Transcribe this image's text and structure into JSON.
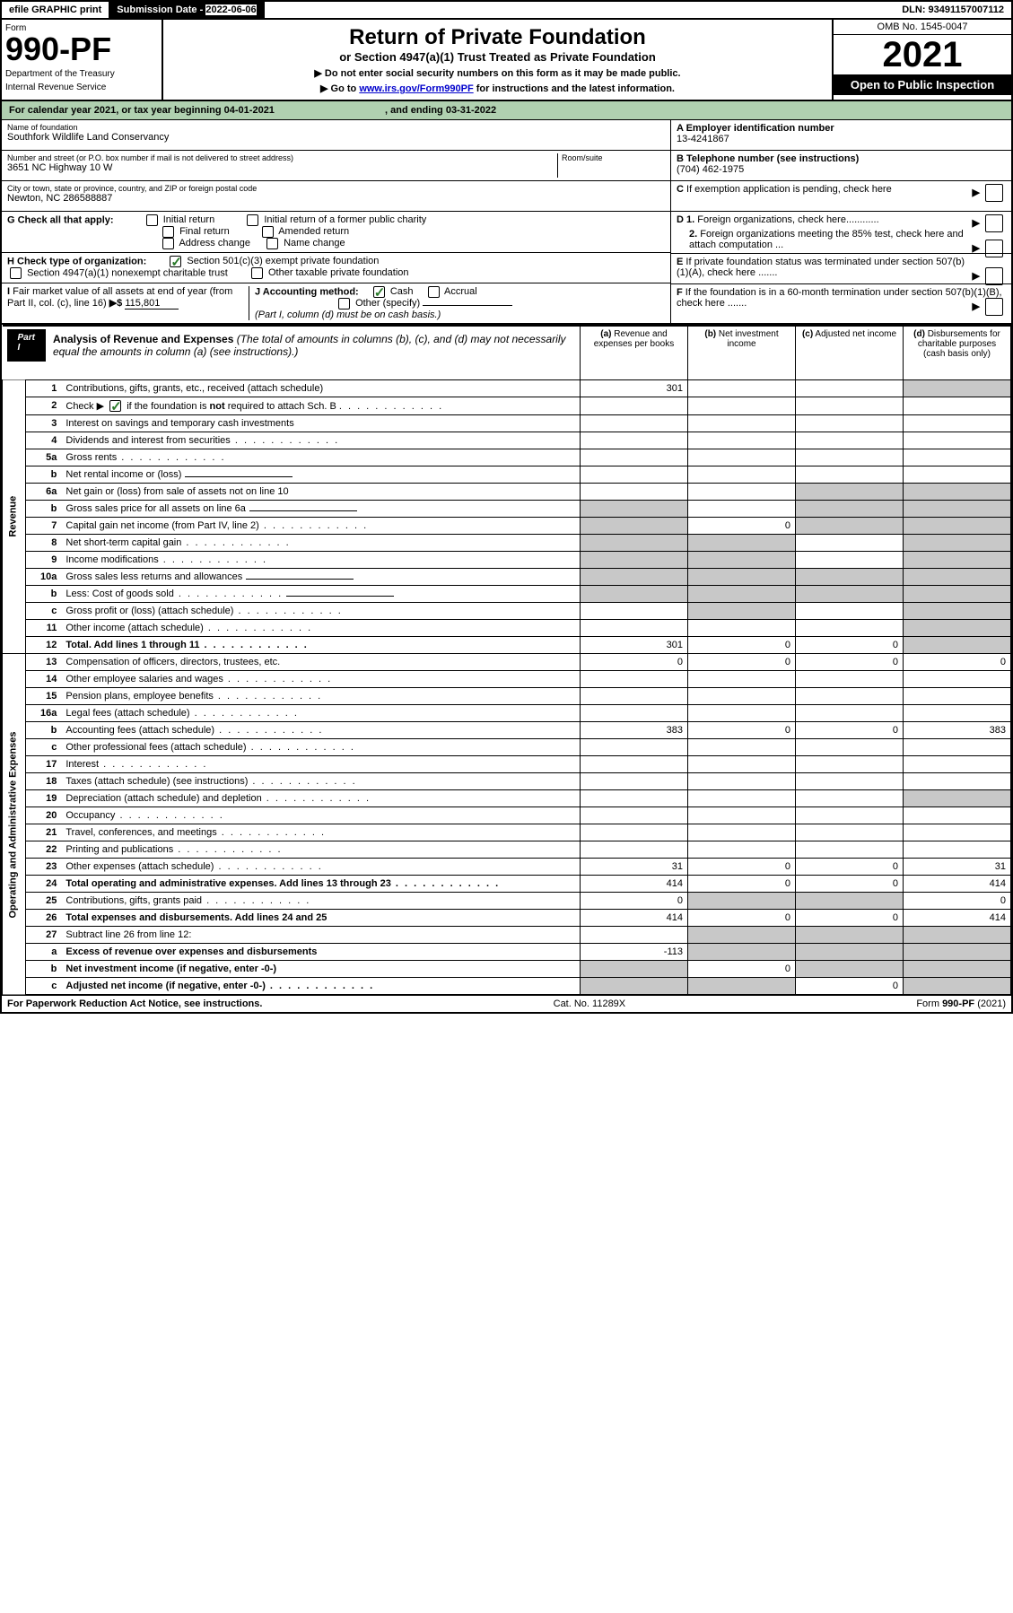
{
  "topbar": {
    "efile": "efile GRAPHIC print",
    "sub_label": "Submission Date - ",
    "sub_date": "2022-06-06",
    "dln": "DLN: 93491157007112"
  },
  "header": {
    "form_label": "Form",
    "form_num": "990-PF",
    "dept1": "Department of the Treasury",
    "dept2": "Internal Revenue Service",
    "title": "Return of Private Foundation",
    "subtitle": "or Section 4947(a)(1) Trust Treated as Private Foundation",
    "instr1": "▶ Do not enter social security numbers on this form as it may be made public.",
    "instr2_pre": "▶ Go to ",
    "instr2_link": "www.irs.gov/Form990PF",
    "instr2_post": " for instructions and the latest information.",
    "omb": "OMB No. 1545-0047",
    "year": "2021",
    "open": "Open to Public Inspection"
  },
  "cal_year": {
    "prefix": "For calendar year 2021, or tax year beginning ",
    "begin": "04-01-2021",
    "mid": " , and ending ",
    "end": "03-31-2022"
  },
  "id": {
    "name_lbl": "Name of foundation",
    "name": "Southfork Wildlife Land Conservancy",
    "addr_lbl": "Number and street (or P.O. box number if mail is not delivered to street address)",
    "addr": "3651 NC Highway 10 W",
    "room_lbl": "Room/suite",
    "city_lbl": "City or town, state or province, country, and ZIP or foreign postal code",
    "city": "Newton, NC 286588887",
    "a_lbl": "A Employer identification number",
    "a_val": "13-4241867",
    "b_lbl": "B Telephone number (see instructions)",
    "b_val": "(704) 462-1975",
    "c_lbl": "C If exemption application is pending, check here",
    "d1": "D 1. Foreign organizations, check here............",
    "d2": "2. Foreign organizations meeting the 85% test, check here and attach computation ...",
    "e": "E If private foundation status was terminated under section 507(b)(1)(A), check here .......",
    "f": "F If the foundation is in a 60-month termination under section 507(b)(1)(B), check here ......."
  },
  "g": {
    "label": "G Check all that apply:",
    "initial": "Initial return",
    "initial_former": "Initial return of a former public charity",
    "final": "Final return",
    "amended": "Amended return",
    "addr_change": "Address change",
    "name_change": "Name change"
  },
  "h": {
    "label": "H Check type of organization:",
    "opt1": "Section 501(c)(3) exempt private foundation",
    "opt2": "Section 4947(a)(1) nonexempt charitable trust",
    "opt3": "Other taxable private foundation"
  },
  "i": {
    "label": "I Fair market value of all assets at end of year (from Part II, col. (c), line 16) ▶$ ",
    "val": "115,801"
  },
  "j": {
    "label": "J Accounting method:",
    "cash": "Cash",
    "accrual": "Accrual",
    "other": "Other (specify)",
    "note": "(Part I, column (d) must be on cash basis.)"
  },
  "part1": {
    "badge": "Part I",
    "title": "Analysis of Revenue and Expenses",
    "title_note": " (The total of amounts in columns (b), (c), and (d) may not necessarily equal the amounts in column (a) (see instructions).)",
    "col_a": "(a) Revenue and expenses per books",
    "col_b": "(b) Net investment income",
    "col_c": "(c) Adjusted net income",
    "col_d": "(d) Disbursements for charitable purposes (cash basis only)",
    "revenue_label": "Revenue",
    "expenses_label": "Operating and Administrative Expenses"
  },
  "rows": [
    {
      "n": "1",
      "t": "Contributions, gifts, grants, etc., received (attach schedule)",
      "a": "301",
      "d_shade": true
    },
    {
      "n": "2",
      "t": "Check ▶ ☑ if the foundation is not required to attach Sch. B",
      "dots": true,
      "no_amt": true
    },
    {
      "n": "3",
      "t": "Interest on savings and temporary cash investments"
    },
    {
      "n": "4",
      "t": "Dividends and interest from securities",
      "dots": true
    },
    {
      "n": "5a",
      "t": "Gross rents",
      "dots": true
    },
    {
      "n": "b",
      "t": "Net rental income or (loss)",
      "blank_after": true
    },
    {
      "n": "6a",
      "t": "Net gain or (loss) from sale of assets not on line 10",
      "c_shade": true,
      "d_shade": true
    },
    {
      "n": "b",
      "t": "Gross sales price for all assets on line 6a",
      "blank_after": true,
      "a_shade": true,
      "c_shade": true,
      "d_shade": true
    },
    {
      "n": "7",
      "t": "Capital gain net income (from Part IV, line 2)",
      "dots": true,
      "b": "0",
      "a_shade": true,
      "c_shade": true,
      "d_shade": true
    },
    {
      "n": "8",
      "t": "Net short-term capital gain",
      "dots": true,
      "a_shade": true,
      "b_shade": true,
      "d_shade": true
    },
    {
      "n": "9",
      "t": "Income modifications",
      "dots": true,
      "a_shade": true,
      "b_shade": true,
      "d_shade": true
    },
    {
      "n": "10a",
      "t": "Gross sales less returns and allowances",
      "blank_after": true,
      "a_shade": true,
      "b_shade": true,
      "c_shade": true,
      "d_shade": true
    },
    {
      "n": "b",
      "t": "Less: Cost of goods sold",
      "dots": true,
      "blank_after": true,
      "a_shade": true,
      "b_shade": true,
      "c_shade": true,
      "d_shade": true
    },
    {
      "n": "c",
      "t": "Gross profit or (loss) (attach schedule)",
      "dots": true,
      "b_shade": true,
      "d_shade": true
    },
    {
      "n": "11",
      "t": "Other income (attach schedule)",
      "dots": true,
      "d_shade": true
    },
    {
      "n": "12",
      "t": "Total. Add lines 1 through 11",
      "dots": true,
      "bold": true,
      "a": "301",
      "b": "0",
      "c": "0",
      "d_shade": true
    }
  ],
  "exp_rows": [
    {
      "n": "13",
      "t": "Compensation of officers, directors, trustees, etc.",
      "a": "0",
      "b": "0",
      "c": "0",
      "d": "0"
    },
    {
      "n": "14",
      "t": "Other employee salaries and wages",
      "dots": true
    },
    {
      "n": "15",
      "t": "Pension plans, employee benefits",
      "dots": true
    },
    {
      "n": "16a",
      "t": "Legal fees (attach schedule)",
      "dots": true
    },
    {
      "n": "b",
      "t": "Accounting fees (attach schedule)",
      "dots": true,
      "a": "383",
      "b": "0",
      "c": "0",
      "d": "383"
    },
    {
      "n": "c",
      "t": "Other professional fees (attach schedule)",
      "dots": true
    },
    {
      "n": "17",
      "t": "Interest",
      "dots": true
    },
    {
      "n": "18",
      "t": "Taxes (attach schedule) (see instructions)",
      "dots": true
    },
    {
      "n": "19",
      "t": "Depreciation (attach schedule) and depletion",
      "dots": true,
      "d_shade": true
    },
    {
      "n": "20",
      "t": "Occupancy",
      "dots": true
    },
    {
      "n": "21",
      "t": "Travel, conferences, and meetings",
      "dots": true
    },
    {
      "n": "22",
      "t": "Printing and publications",
      "dots": true
    },
    {
      "n": "23",
      "t": "Other expenses (attach schedule)",
      "dots": true,
      "a": "31",
      "b": "0",
      "c": "0",
      "d": "31"
    },
    {
      "n": "24",
      "t": "Total operating and administrative expenses. Add lines 13 through 23",
      "dots": true,
      "bold": true,
      "a": "414",
      "b": "0",
      "c": "0",
      "d": "414"
    },
    {
      "n": "25",
      "t": "Contributions, gifts, grants paid",
      "dots": true,
      "a": "0",
      "b_shade": true,
      "c_shade": true,
      "d": "0"
    },
    {
      "n": "26",
      "t": "Total expenses and disbursements. Add lines 24 and 25",
      "bold": true,
      "a": "414",
      "b": "0",
      "c": "0",
      "d": "414"
    },
    {
      "n": "27",
      "t": "Subtract line 26 from line 12:",
      "b_shade": true,
      "c_shade": true,
      "d_shade": true
    },
    {
      "n": "a",
      "t": "Excess of revenue over expenses and disbursements",
      "bold": true,
      "a": "-113",
      "b_shade": true,
      "c_shade": true,
      "d_shade": true
    },
    {
      "n": "b",
      "t": "Net investment income (if negative, enter -0-)",
      "bold": true,
      "a_shade": true,
      "b": "0",
      "c_shade": true,
      "d_shade": true
    },
    {
      "n": "c",
      "t": "Adjusted net income (if negative, enter -0-)",
      "dots": true,
      "bold": true,
      "a_shade": true,
      "b_shade": true,
      "c": "0",
      "d_shade": true
    }
  ],
  "footer": {
    "left": "For Paperwork Reduction Act Notice, see instructions.",
    "mid": "Cat. No. 11289X",
    "right": "Form 990-PF (2021)"
  }
}
